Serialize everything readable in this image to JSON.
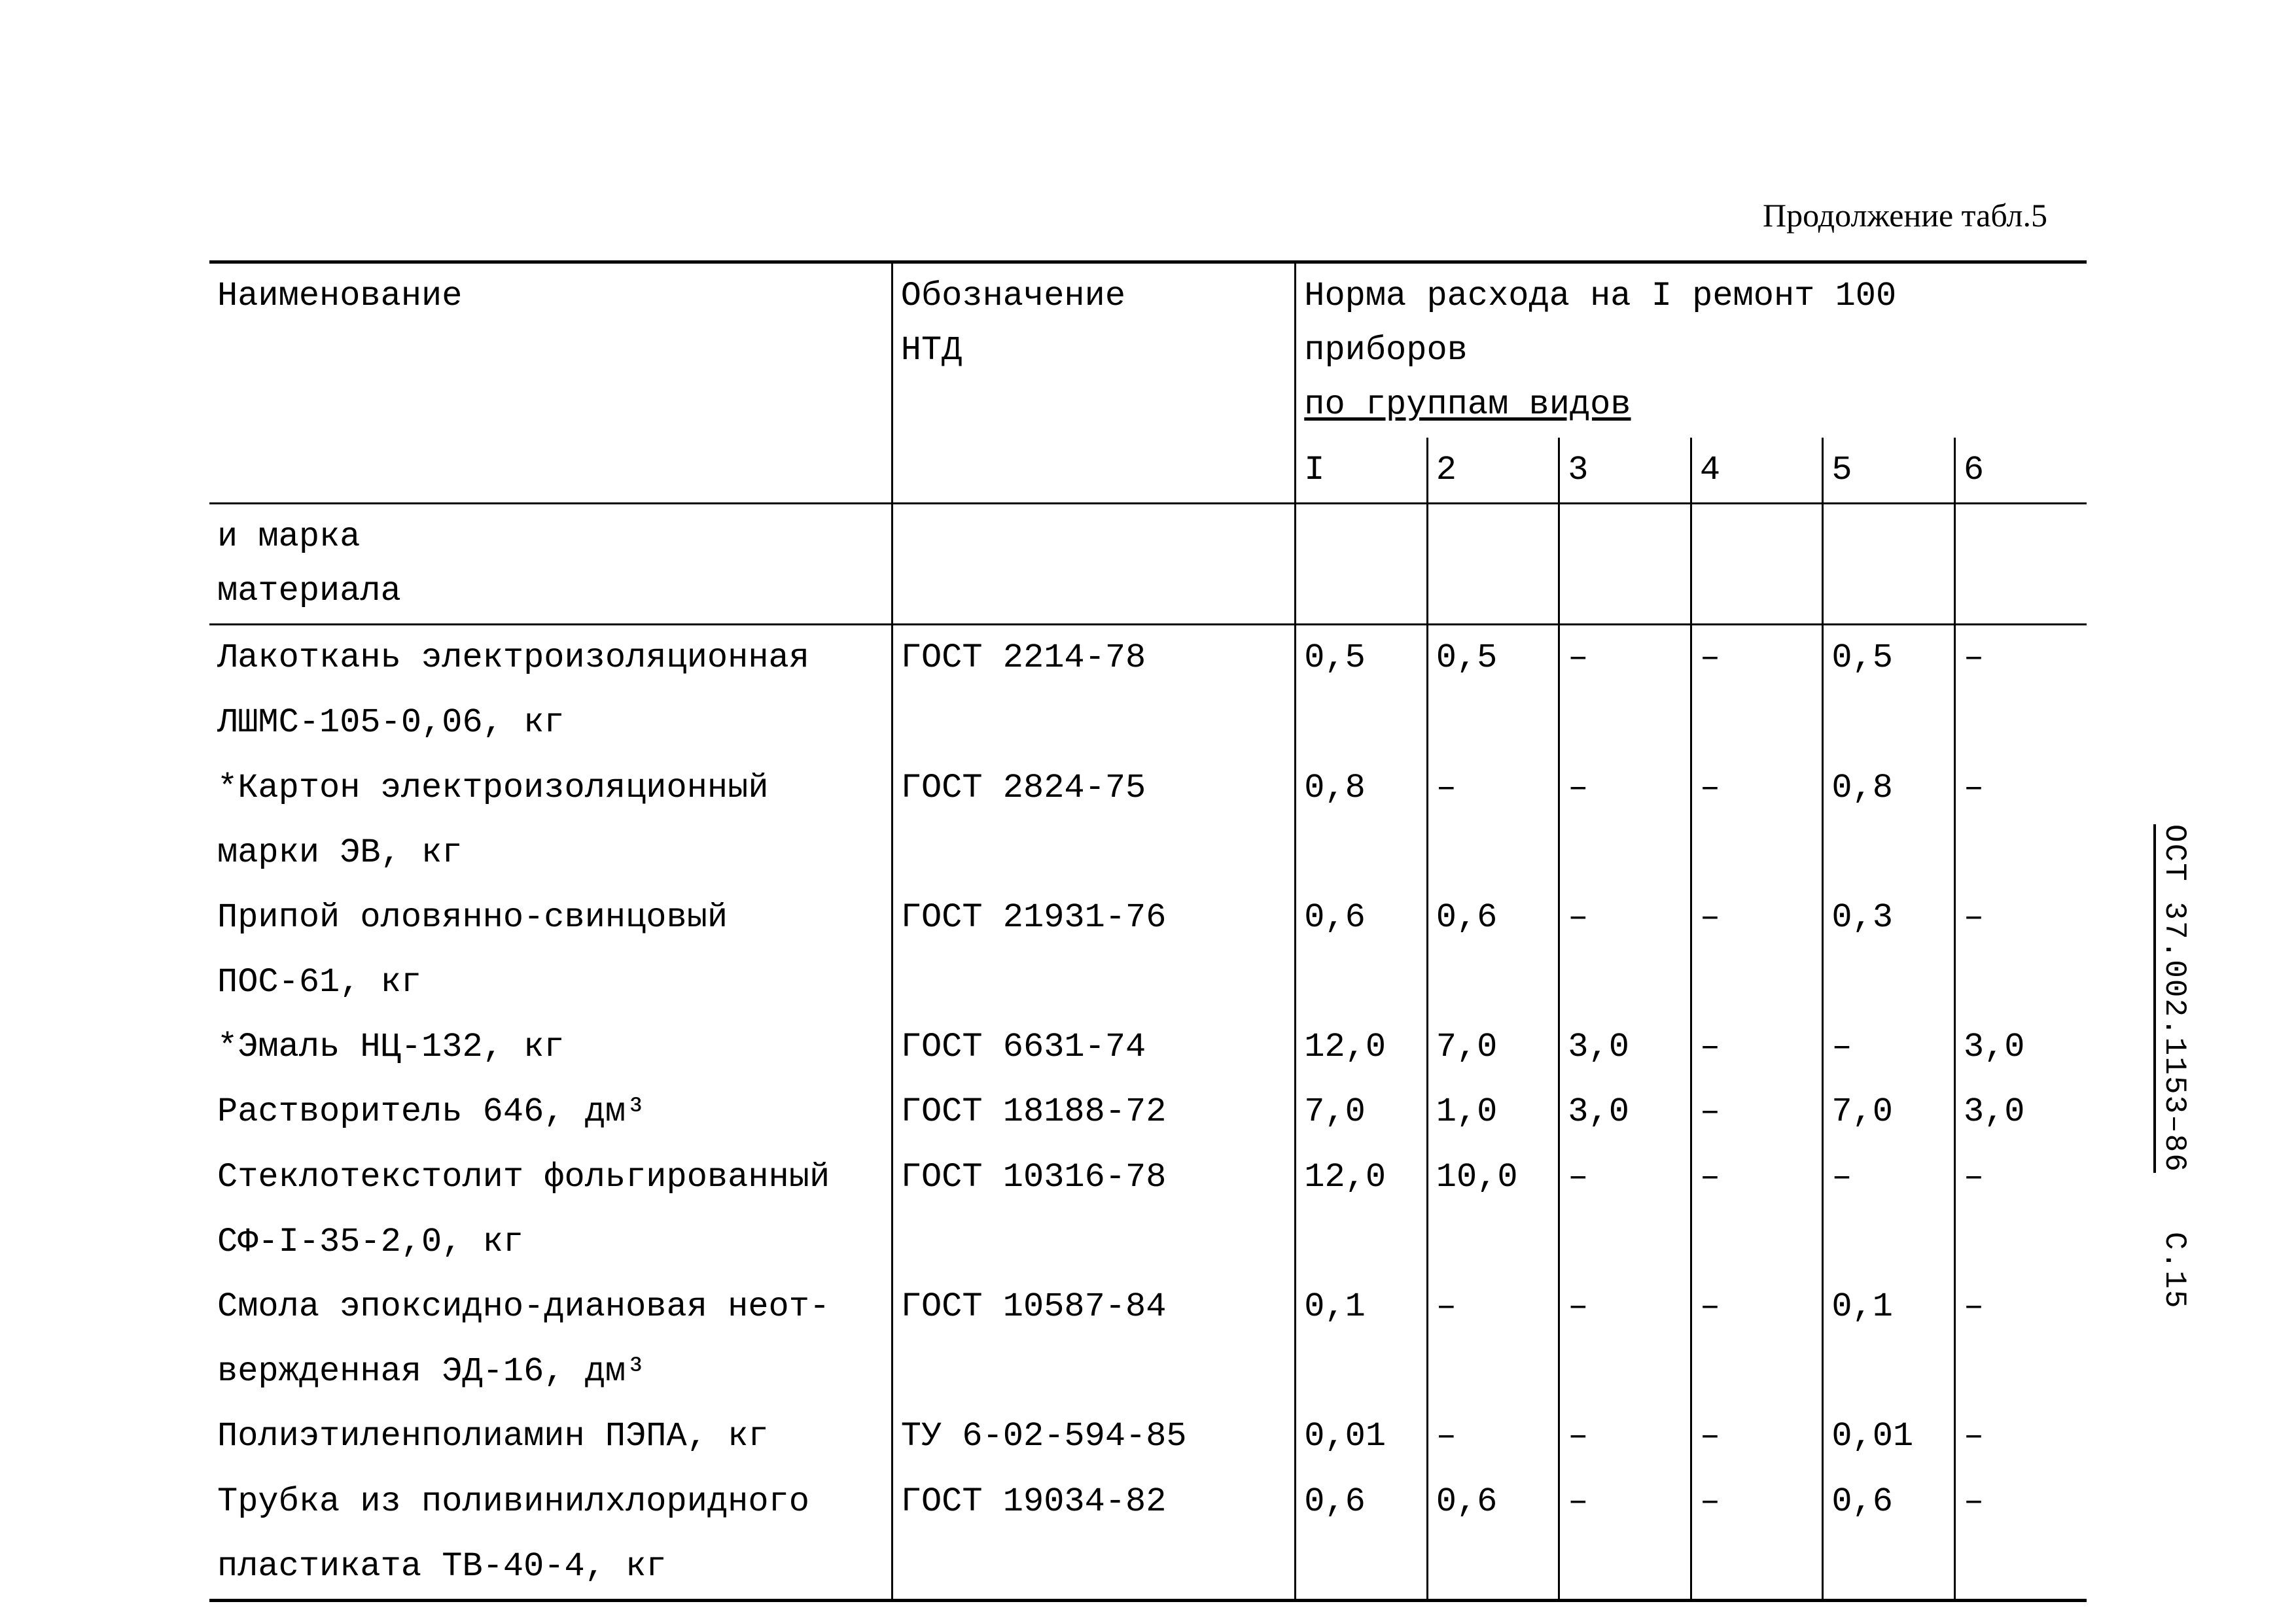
{
  "caption": "Продолжение табл.5",
  "margin": {
    "doc_id": "ОСТ 37.002.1153–86",
    "page_no": "С.15"
  },
  "header": {
    "name_line1": "Наименование",
    "name_line2": "и марка",
    "name_line3": "материала",
    "gost_line1": "Обозначение",
    "gost_line2": "НТД",
    "norm_title_a": "Норма расхода на I ремонт 100 приборов",
    "norm_title_b": "по группам видов",
    "group_labels": [
      "I",
      "2",
      "3",
      "4",
      "5",
      "6"
    ]
  },
  "rows": [
    {
      "name": "Лакоткань электроизоляционная",
      "name2": "ЛШМС-105-0,06, кг",
      "gost": "ГОСТ 2214-78",
      "v": [
        "0,5",
        "0,5",
        "–",
        "–",
        "0,5",
        "–"
      ]
    },
    {
      "name": "*Картон электроизоляционный",
      "name2": "марки ЭВ, кг",
      "gost": "ГОСТ 2824-75",
      "v": [
        "0,8",
        "–",
        "–",
        "–",
        "0,8",
        "–"
      ]
    },
    {
      "name": "Припой оловянно-свинцовый",
      "name2": "ПОС-61, кг",
      "gost": "ГОСТ 21931-76",
      "v": [
        "0,6",
        "0,6",
        "–",
        "–",
        "0,3",
        "–"
      ]
    },
    {
      "name": "*Эмаль НЦ-132, кг",
      "name2": "",
      "gost": "ГОСТ 6631-74",
      "v": [
        "12,0",
        "7,0",
        "3,0",
        "–",
        "–",
        "3,0"
      ]
    },
    {
      "name": "Растворитель 646, дм³",
      "name2": "",
      "gost": "ГОСТ 18188-72",
      "v": [
        "7,0",
        "1,0",
        "3,0",
        "–",
        "7,0",
        "3,0"
      ]
    },
    {
      "name": "Стеклотекстолит фольгированный",
      "name2": "СФ-I-35-2,0, кг",
      "gost": "ГОСТ 10316-78",
      "v": [
        "12,0",
        "10,0",
        "–",
        "–",
        "–",
        "–"
      ]
    },
    {
      "name": "Смола эпоксидно-диановая неот-",
      "name2": "вержденная ЭД-16, дм³",
      "gost": "ГОСТ 10587-84",
      "v": [
        "0,1",
        "–",
        "–",
        "–",
        "0,1",
        "–"
      ]
    },
    {
      "name": "Полиэтиленполиамин ПЭПА, кг",
      "name2": "",
      "gost": "ТУ 6-02-594-85",
      "v": [
        "0,01",
        "–",
        "–",
        "–",
        "0,01",
        "–"
      ]
    },
    {
      "name": "Трубка из поливинилхлоридного",
      "name2": "пластиката ТВ-40-4, кг",
      "gost": "ГОСТ 19034-82",
      "v": [
        "0,6",
        "0,6",
        "–",
        "–",
        "0,6",
        "–"
      ]
    }
  ]
}
